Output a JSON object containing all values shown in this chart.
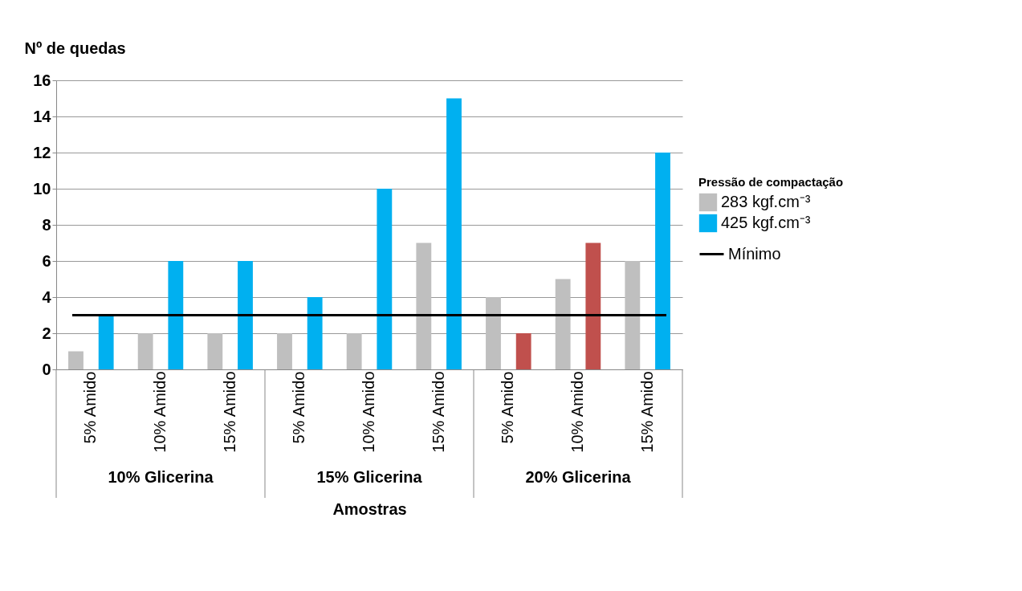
{
  "chart_data": {
    "type": "bar",
    "ylabel": "Nº de quedas",
    "xlabel": "Amostras",
    "legend_title": "Pressão de compactação",
    "categories": [
      "5% Amido",
      "10% Amido",
      "15% Amido",
      "5% Amido",
      "10% Amido",
      "15% Amido",
      "5% Amido",
      "10% Amido",
      "15% Amido"
    ],
    "series": [
      {
        "name": "283 kgf.cm⁻³",
        "color": "#bfbfbf",
        "values": [
          1,
          2,
          2,
          2,
          2,
          7,
          4,
          5,
          6
        ]
      },
      {
        "name": "425 kgf.cm⁻³",
        "color": "#00b0f0",
        "colors": [
          "#00b0f0",
          "#00b0f0",
          "#00b0f0",
          "#00b0f0",
          "#00b0f0",
          "#00b0f0",
          "#c0504d",
          "#c0504d",
          "#00b0f0"
        ],
        "values": [
          3,
          6,
          6,
          4,
          10,
          15,
          2,
          7,
          12
        ]
      }
    ],
    "annotations": [
      "10% Glicerina",
      "15% Glicerina",
      "20% Glicerina"
    ],
    "ref_lines": [
      {
        "axis": "y",
        "value": 3,
        "label": "Mínimo",
        "color": "#000000"
      }
    ],
    "ylim": [
      0,
      16
    ],
    "yticks": [
      0,
      2,
      4,
      6,
      8,
      10,
      12,
      14,
      16
    ],
    "grid": "y",
    "legend": "right"
  }
}
